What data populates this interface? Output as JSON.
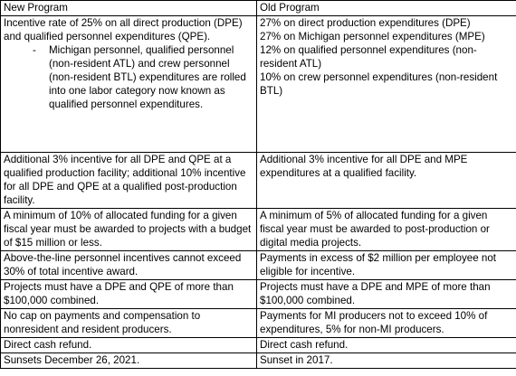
{
  "table": {
    "headers": [
      "New Program",
      "Old Program"
    ],
    "rows": [
      {
        "new": {
          "text": "Incentive rate of 25% on all direct production (DPE) and qualified personnel expenditures (QPE).",
          "subitem": "Michigan personnel, qualified personnel (non-resident ATL) and crew personnel (non-resident BTL) expenditures are rolled into one labor category now known as qualified personnel expenditures."
        },
        "old": [
          "27% on direct production expenditures (DPE)",
          "27% on Michigan personnel expenditures (MPE)",
          "12% on qualified personnel expenditures (non-resident ATL)",
          "10% on crew personnel expenditures (non-resident BTL)"
        ]
      },
      {
        "new": "Additional 3% incentive for all DPE and QPE at a qualified production facility; additional 10% incentive for all DPE and QPE at a qualified post-production facility.",
        "old": "Additional 3% incentive for all DPE and MPE expenditures at a qualified facility."
      },
      {
        "new": "A minimum of 10% of allocated funding for a given fiscal year must be awarded to projects with a budget of $15 million or less.",
        "old": "A minimum of 5% of allocated funding for a given fiscal year must be awarded to post-production or digital media projects."
      },
      {
        "new": "Above-the-line personnel incentives cannot exceed 30% of total incentive award.",
        "old": "Payments in excess of $2 million per employee not eligible for incentive."
      },
      {
        "new": "Projects must have a DPE and QPE of more than $100,000 combined.",
        "old": "Projects must have a DPE and MPE of more than $100,000 combined."
      },
      {
        "new": "No cap on payments and compensation to nonresident and resident producers.",
        "old": "Payments for MI producers not to exceed 10% of expenditures, 5% for non-MI producers."
      },
      {
        "new": "Direct cash refund.",
        "old": "Direct cash refund."
      },
      {
        "new": "Sunsets December 26, 2021.",
        "old": "Sunset in 2017."
      }
    ]
  }
}
